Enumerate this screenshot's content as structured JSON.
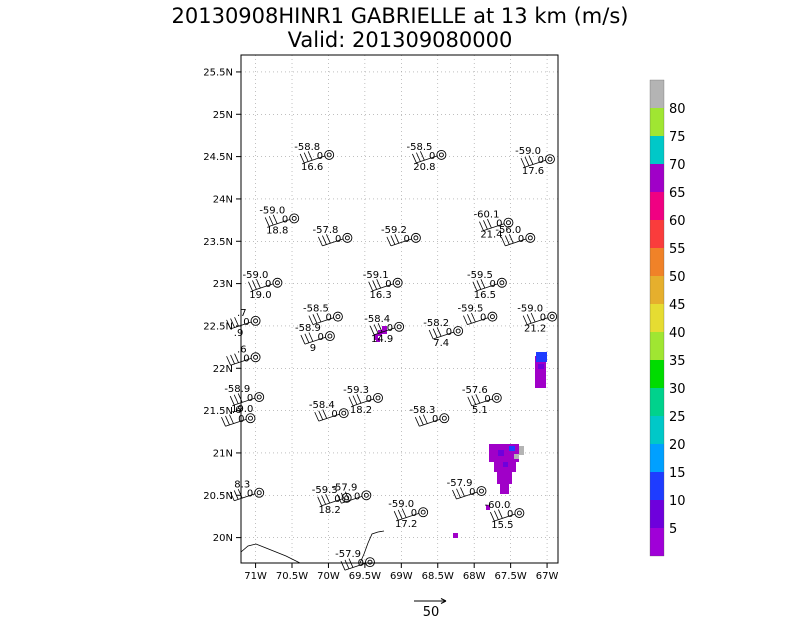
{
  "title": {
    "line1": "20130908HINR1 GABRIELLE at 13 km (m/s)",
    "line2": "Valid: 201309080000"
  },
  "chart_data": {
    "type": "scatter",
    "title": "20130908HINR1 GABRIELLE at 13 km (m/s)",
    "subtitle": "Valid: 201309080000",
    "x_ticks": [
      "71W",
      "70.5W",
      "70W",
      "69.5W",
      "69W",
      "68.5W",
      "68W",
      "67.5W",
      "67W"
    ],
    "x_tick_values": [
      -71,
      -70.5,
      -70,
      -69.5,
      -69,
      -68.5,
      -68,
      -67.5,
      -67
    ],
    "y_ticks": [
      "20N",
      "20.5N",
      "21N",
      "21.5N",
      "22N",
      "22.5N",
      "23N",
      "23.5N",
      "24N",
      "24.5N",
      "25N",
      "25.5N"
    ],
    "y_tick_values": [
      20,
      20.5,
      21,
      21.5,
      22,
      22.5,
      23,
      23.5,
      24,
      24.5,
      25,
      25.5
    ],
    "xlim": [
      -71.2,
      -66.85
    ],
    "ylim": [
      19.7,
      25.7
    ],
    "grid": true,
    "reference_vector": {
      "label": "50",
      "value": 50
    },
    "colorbar": {
      "labels": [
        "5",
        "10",
        "15",
        "20",
        "25",
        "30",
        "35",
        "40",
        "45",
        "50",
        "55",
        "60",
        "65",
        "70",
        "75",
        "80"
      ],
      "colors": [
        "#a000d8",
        "#6e00dc",
        "#1e3cff",
        "#00a0ff",
        "#00c8c8",
        "#00d28c",
        "#00dc00",
        "#a0e632",
        "#e6dc32",
        "#e6af2d",
        "#f08228",
        "#fa3c3c",
        "#f00082",
        "#a000c8",
        "#00c8c8",
        "#a0e632",
        "#b4b4b4"
      ]
    },
    "stations": [
      {
        "lon": -69.99,
        "lat": 24.52,
        "temp": "-58.8",
        "mid": "0",
        "speed": "16.6"
      },
      {
        "lon": -68.45,
        "lat": 24.52,
        "temp": "-58.5",
        "mid": "0",
        "speed": "20.8"
      },
      {
        "lon": -66.96,
        "lat": 24.47,
        "temp": "-59.0",
        "mid": "0",
        "speed": "17.6"
      },
      {
        "lon": -70.47,
        "lat": 23.77,
        "temp": "-59.0",
        "mid": "0",
        "speed": "18.8"
      },
      {
        "lon": -69.74,
        "lat": 23.54,
        "temp": "-57.8",
        "mid": "0",
        "speed": ""
      },
      {
        "lon": -68.8,
        "lat": 23.54,
        "temp": "-59.2",
        "mid": "0",
        "speed": ""
      },
      {
        "lon": -67.53,
        "lat": 23.72,
        "temp": "-60.1",
        "mid": "0",
        "speed": "21.4"
      },
      {
        "lon": -67.23,
        "lat": 23.54,
        "temp": "-56.0",
        "mid": "0",
        "speed": ""
      },
      {
        "lon": -70.7,
        "lat": 23.01,
        "temp": "-59.0",
        "mid": "0",
        "speed": "19.0"
      },
      {
        "lon": -69.05,
        "lat": 23.01,
        "temp": "-59.1",
        "mid": "0",
        "speed": "16.3"
      },
      {
        "lon": -67.62,
        "lat": 23.01,
        "temp": "-59.5",
        "mid": "0",
        "speed": "16.5"
      },
      {
        "lon": -71.0,
        "lat": 22.56,
        "temp": ".7",
        "mid": "0",
        "speed": ".9"
      },
      {
        "lon": -69.87,
        "lat": 22.61,
        "temp": "-58.5",
        "mid": "0",
        "speed": ""
      },
      {
        "lon": -69.98,
        "lat": 22.38,
        "temp": "-58.9",
        "mid": "0",
        "speed": "9"
      },
      {
        "lon": -69.03,
        "lat": 22.49,
        "temp": "-58.4",
        "mid": "0",
        "speed": "14.9"
      },
      {
        "lon": -67.75,
        "lat": 22.61,
        "temp": "-59.5",
        "mid": "0",
        "speed": ""
      },
      {
        "lon": -68.22,
        "lat": 22.44,
        "temp": "-58.2",
        "mid": "0",
        "speed": "7.4"
      },
      {
        "lon": -66.93,
        "lat": 22.61,
        "temp": "-59.0",
        "mid": "0",
        "speed": "21.2"
      },
      {
        "lon": -71.0,
        "lat": 22.13,
        "temp": ".6",
        "mid": "0",
        "speed": ""
      },
      {
        "lon": -70.95,
        "lat": 21.66,
        "temp": "-58.9",
        "mid": "0",
        "speed": "19.0"
      },
      {
        "lon": -69.79,
        "lat": 21.47,
        "temp": "-58.4",
        "mid": "0",
        "speed": ""
      },
      {
        "lon": -69.32,
        "lat": 21.65,
        "temp": "-59.3",
        "mid": "0",
        "speed": "18.2"
      },
      {
        "lon": -68.41,
        "lat": 21.41,
        "temp": "-58.3",
        "mid": "0",
        "speed": ""
      },
      {
        "lon": -67.69,
        "lat": 21.65,
        "temp": "-57.6",
        "mid": "0",
        "speed": "5.1"
      },
      {
        "lon": -71.07,
        "lat": 21.41,
        "temp": ".6",
        "mid": "0",
        "speed": ""
      },
      {
        "lon": -70.95,
        "lat": 20.53,
        "temp": "8.3",
        "mid": "0",
        "speed": ""
      },
      {
        "lon": -69.75,
        "lat": 20.47,
        "temp": "-59.3",
        "mid": "0",
        "speed": "18.2"
      },
      {
        "lon": -69.48,
        "lat": 20.5,
        "temp": "-57.9",
        "mid": "0",
        "speed": ""
      },
      {
        "lon": -68.7,
        "lat": 20.3,
        "temp": "-59.0",
        "mid": "0",
        "speed": "17.2"
      },
      {
        "lon": -67.9,
        "lat": 20.55,
        "temp": "-57.9",
        "mid": "0",
        "speed": ""
      },
      {
        "lon": -67.38,
        "lat": 20.29,
        "temp": "-60.0",
        "mid": "0",
        "speed": "15.5"
      },
      {
        "lon": -69.43,
        "lat": 19.71,
        "temp": "-57.9",
        "mid": "0",
        "speed": ""
      }
    ]
  }
}
